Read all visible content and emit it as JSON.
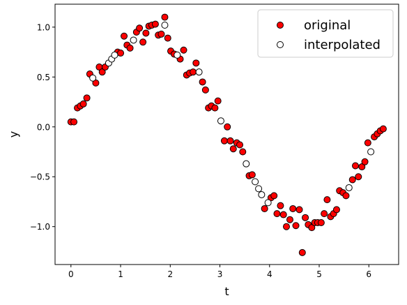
{
  "chart_data": {
    "type": "scatter",
    "xlabel": "t",
    "ylabel": "y",
    "xlim": [
      -0.32,
      6.6
    ],
    "ylim": [
      -1.38,
      1.23
    ],
    "xticks": [
      0,
      1,
      2,
      3,
      4,
      5,
      6
    ],
    "xtick_labels": [
      "0",
      "1",
      "2",
      "3",
      "4",
      "5",
      "6"
    ],
    "yticks": [
      -1.0,
      -0.5,
      0.0,
      0.5,
      1.0
    ],
    "ytick_labels": [
      "−1.0",
      "−0.5",
      "0.0",
      "0.5",
      "1.0"
    ],
    "grid": false,
    "legend_position": "top-right",
    "series": [
      {
        "name": "original",
        "color": "#ff0000",
        "marker": "filled-circle",
        "x": [
          0.0,
          0.06,
          0.13,
          0.19,
          0.25,
          0.32,
          0.38,
          0.5,
          0.57,
          0.63,
          0.69,
          0.94,
          1.0,
          1.07,
          1.13,
          1.19,
          1.32,
          1.38,
          1.45,
          1.51,
          1.57,
          1.63,
          1.7,
          1.76,
          1.82,
          1.89,
          1.95,
          2.01,
          2.08,
          2.2,
          2.27,
          2.33,
          2.39,
          2.46,
          2.52,
          2.65,
          2.71,
          2.77,
          2.83,
          2.9,
          2.96,
          3.09,
          3.15,
          3.21,
          3.27,
          3.34,
          3.4,
          3.46,
          3.59,
          3.65,
          3.9,
          4.03,
          4.09,
          4.15,
          4.22,
          4.28,
          4.34,
          4.41,
          4.47,
          4.53,
          4.6,
          4.66,
          4.72,
          4.78,
          4.85,
          4.91,
          4.97,
          5.04,
          5.1,
          5.16,
          5.23,
          5.29,
          5.35,
          5.41,
          5.48,
          5.54,
          5.67,
          5.73,
          5.79,
          5.86,
          5.92,
          5.98,
          6.11,
          6.17,
          6.23,
          6.29
        ],
        "y": [
          0.05,
          0.05,
          0.19,
          0.21,
          0.23,
          0.29,
          0.53,
          0.44,
          0.6,
          0.55,
          0.6,
          0.75,
          0.74,
          0.91,
          0.82,
          0.79,
          0.95,
          0.99,
          0.85,
          0.94,
          1.01,
          1.02,
          1.03,
          0.92,
          0.93,
          1.1,
          0.89,
          0.76,
          0.73,
          0.68,
          0.77,
          0.52,
          0.54,
          0.55,
          0.64,
          0.45,
          0.37,
          0.19,
          0.21,
          0.19,
          0.26,
          -0.14,
          0.0,
          -0.14,
          -0.22,
          -0.16,
          -0.18,
          -0.25,
          -0.49,
          -0.48,
          -0.82,
          -0.71,
          -0.69,
          -0.87,
          -0.79,
          -0.88,
          -1.0,
          -0.93,
          -0.82,
          -0.99,
          -0.83,
          -1.26,
          -0.91,
          -0.98,
          -1.01,
          -0.96,
          -0.96,
          -0.96,
          -0.87,
          -0.73,
          -0.9,
          -0.87,
          -0.83,
          -0.64,
          -0.66,
          -0.69,
          -0.53,
          -0.39,
          -0.5,
          -0.4,
          -0.35,
          -0.16,
          -0.1,
          -0.07,
          -0.04,
          -0.02
        ]
      },
      {
        "name": "interpolated",
        "color": "#ffffff",
        "marker": "hollow-circle",
        "x": [
          0.44,
          0.76,
          0.82,
          0.88,
          1.26,
          1.89,
          2.14,
          2.58,
          3.02,
          3.53,
          3.71,
          3.78,
          3.84,
          3.97,
          5.6,
          6.04
        ],
        "y": [
          0.49,
          0.64,
          0.68,
          0.72,
          0.87,
          1.02,
          0.72,
          0.55,
          0.06,
          -0.37,
          -0.55,
          -0.62,
          -0.68,
          -0.76,
          -0.61,
          -0.25
        ]
      }
    ]
  }
}
